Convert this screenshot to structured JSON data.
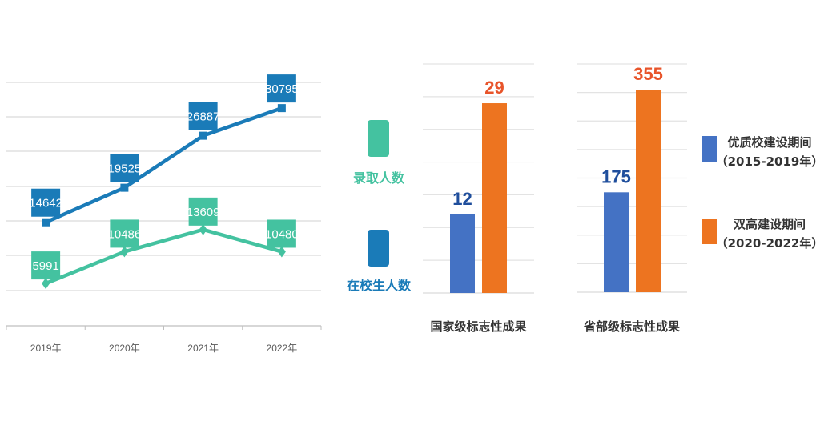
{
  "chart_data": [
    {
      "type": "line",
      "categories": [
        "2019年",
        "2020年",
        "2021年",
        "2022年"
      ],
      "series": [
        {
          "name": "在校生人数",
          "values": [
            14642,
            19525,
            26887,
            30795
          ],
          "color": "#1a7bb8",
          "marker": "square"
        },
        {
          "name": "录取人数",
          "values": [
            5991,
            10486,
            13609,
            10480
          ],
          "color": "#44c2a0",
          "marker": "diamond"
        }
      ],
      "ylim": [
        0,
        35000
      ],
      "grid": true,
      "legend": "right"
    },
    {
      "type": "bar",
      "groups": [
        {
          "label": "国家级标志性成果",
          "values": [
            12,
            29
          ],
          "ylim": [
            0,
            35
          ],
          "grid_step": 5
        },
        {
          "label": "省部级标志性成果",
          "values": [
            175,
            355
          ],
          "ylim": [
            0,
            400
          ],
          "grid_step": 50
        }
      ],
      "series": [
        {
          "name": "优质校建设期间",
          "sub": "（2015-2019年）",
          "color": "#4472c4",
          "label_color": "#1f4e9c"
        },
        {
          "name": "双高建设期间",
          "sub": "（2020-2022年）",
          "color": "#ed7420",
          "label_color": "#e8542a"
        }
      ],
      "grid": true,
      "legend": "right"
    }
  ]
}
